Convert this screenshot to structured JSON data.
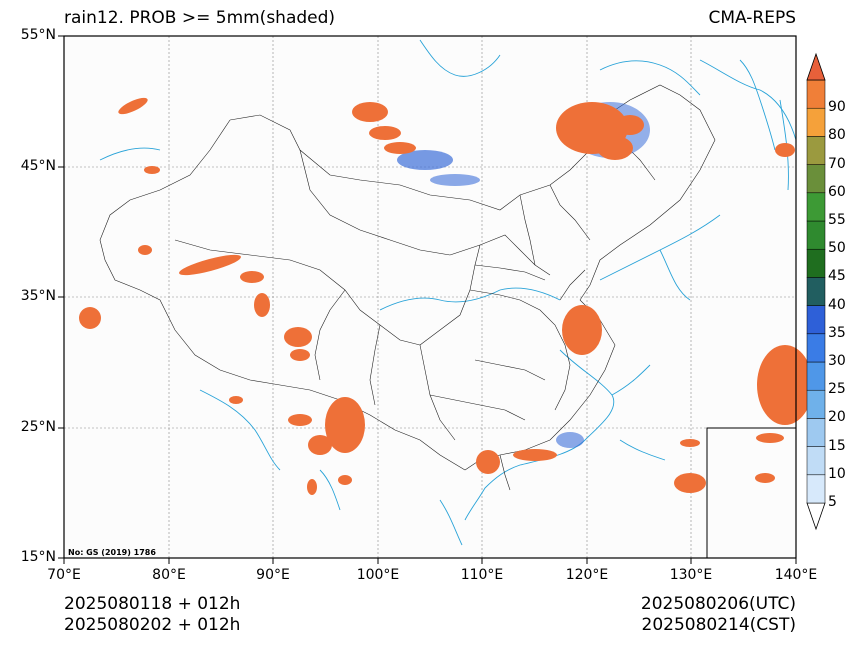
{
  "title_left": "rain12. PROB >= 5mm(shaded)",
  "title_right": "CMA-REPS",
  "lat_ticks": [
    "55°N",
    "45°N",
    "35°N",
    "25°N",
    "15°N"
  ],
  "lon_ticks": [
    "70°E",
    "80°E",
    "90°E",
    "100°E",
    "110°E",
    "120°E",
    "130°E",
    "140°E"
  ],
  "map_note": "No: GS (2019) 1786",
  "footer_left": [
    "2025080118  +  012h",
    "2025080202  +  012h"
  ],
  "footer_right": [
    "2025080206(UTC)",
    "2025080214(CST)"
  ],
  "colorbar": {
    "levels": [
      "5",
      "10",
      "15",
      "20",
      "25",
      "30",
      "35",
      "40",
      "45",
      "50",
      "55",
      "60",
      "70",
      "80",
      "90"
    ],
    "colors": [
      "#d7e9fb",
      "#c0dcf6",
      "#9ec9f0",
      "#6fb1ea",
      "#4f97e8",
      "#3a7ce6",
      "#2e60d8",
      "#215e60",
      "#1f6e1f",
      "#2f8a2f",
      "#3d9a35",
      "#6a8f3a",
      "#9b9a3f",
      "#f5a13a",
      "#f07f38",
      "#e8603a"
    ]
  },
  "colors": {
    "precip_high": "#ee7038",
    "precip_green": "#3a8f45",
    "precip_blue": "#3d6fd8",
    "coastline": "#29a3d8",
    "boundary": "#222222"
  }
}
